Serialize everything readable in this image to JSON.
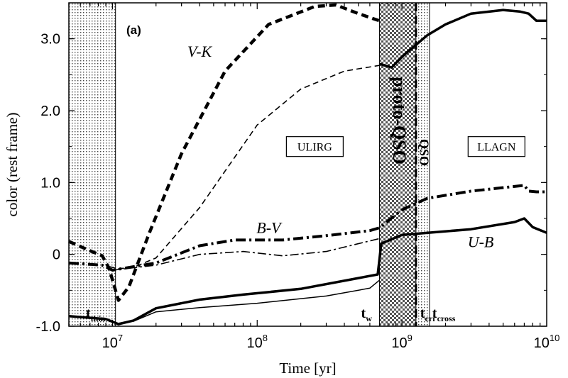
{
  "chart_data": {
    "type": "line",
    "panel_label": "(a)",
    "xlabel": "Time [yr]",
    "ylabel": "color (rest frame)",
    "x_scale": "log",
    "xlim": [
      5000000,
      10000000000
    ],
    "ylim": [
      -1.0,
      3.5
    ],
    "x_ticks": [
      {
        "value": 10000000,
        "base": "10",
        "exp": "7"
      },
      {
        "value": 100000000,
        "base": "10",
        "exp": "8"
      },
      {
        "value": 1000000000,
        "base": "10",
        "exp": "9"
      },
      {
        "value": 10000000000,
        "base": "10",
        "exp": "10"
      }
    ],
    "y_ticks": [
      {
        "value": 3.0,
        "label": "3.0"
      },
      {
        "value": 2.0,
        "label": "2.0"
      },
      {
        "value": 1.0,
        "label": "1.0"
      },
      {
        "value": 0.0,
        "label": "0"
      },
      {
        "value": -1.0,
        "label": "-1.0"
      }
    ],
    "series": [
      {
        "name": "V-K",
        "style": "thick-dashed",
        "x": [
          5000000,
          7000000,
          8500000,
          9500000,
          11000000,
          13000000,
          18000000,
          30000000,
          60000000,
          120000000,
          250000000,
          350000000,
          500000000,
          700000000
        ],
        "y": [
          0.18,
          0.05,
          -0.02,
          -0.2,
          -0.64,
          -0.45,
          0.3,
          1.4,
          2.55,
          3.2,
          3.45,
          3.47,
          3.35,
          3.25
        ]
      },
      {
        "name": "",
        "style": "thin-dashed",
        "x": [
          9500000,
          11000000,
          14000000,
          20000000,
          40000000,
          100000000,
          200000000,
          400000000,
          700000000
        ],
        "y": [
          -0.17,
          -0.2,
          -0.18,
          -0.05,
          0.65,
          1.8,
          2.3,
          2.55,
          2.63
        ]
      },
      {
        "name": "B-V",
        "style": "thick-dash-dot",
        "x": [
          5000000,
          8500000,
          10000000,
          20000000,
          40000000,
          70000000,
          150000000,
          300000000,
          600000000,
          700000000,
          1000000000,
          1500000000,
          3000000000,
          7000000000,
          7500000000,
          8500000000,
          10000000000
        ],
        "y": [
          -0.12,
          -0.15,
          -0.22,
          -0.12,
          0.12,
          0.2,
          0.2,
          0.26,
          0.33,
          0.37,
          0.62,
          0.78,
          0.88,
          0.96,
          0.88,
          0.87,
          0.87
        ]
      },
      {
        "name": "",
        "style": "thin-dash-dot",
        "x": [
          10000000,
          20000000,
          40000000,
          80000000,
          150000000,
          300000000,
          700000000
        ],
        "y": [
          -0.22,
          -0.15,
          0.0,
          0.04,
          -0.02,
          0.04,
          0.22
        ]
      },
      {
        "name": "U-B",
        "style": "thick-solid",
        "x": [
          5000000,
          9000000,
          11000000,
          14000000,
          20000000,
          40000000,
          80000000,
          200000000,
          500000000,
          680000000,
          720000000,
          1000000000,
          3000000000,
          6000000000,
          7000000000,
          8000000000,
          10000000000
        ],
        "y": [
          -0.86,
          -0.9,
          -0.97,
          -0.92,
          -0.75,
          -0.63,
          -0.56,
          -0.48,
          -0.33,
          -0.28,
          0.15,
          0.27,
          0.35,
          0.45,
          0.5,
          0.38,
          0.3
        ]
      },
      {
        "name": "",
        "style": "thin-solid",
        "x": [
          11000000,
          14000000,
          20000000,
          40000000,
          100000000,
          300000000,
          600000000,
          700000000
        ],
        "y": [
          -0.96,
          -0.93,
          -0.8,
          -0.74,
          -0.68,
          -0.58,
          -0.47,
          -0.36
        ]
      },
      {
        "name": "",
        "style": "thick-solid",
        "x": [
          700000000,
          850000000,
          1000000000,
          1500000000,
          2000000000,
          3000000000,
          5000000000,
          6500000000,
          7500000000,
          8500000000,
          10000000000
        ],
        "y": [
          2.65,
          2.6,
          2.75,
          3.05,
          3.2,
          3.35,
          3.4,
          3.38,
          3.35,
          3.25,
          3.25
        ]
      }
    ],
    "regions": [
      {
        "x0": 5000000,
        "x1": 10500000,
        "pattern": "dots",
        "label": "",
        "marker": "t",
        "marker_sub": "thin"
      },
      {
        "x0": 700000000,
        "x1": 1250000000,
        "pattern": "checker",
        "label": "proto-QSO",
        "marker": "t",
        "marker_sub": "w"
      },
      {
        "x0": 1250000000,
        "x1": 1550000000,
        "pattern": "dots",
        "label": "QSO",
        "marker": "t",
        "marker_sub": "cri"
      }
    ],
    "vlines": [
      {
        "x": 1250000000,
        "style": "dashed"
      }
    ],
    "annotations": [
      {
        "text": "ULIRG",
        "boxed": true,
        "x": 250000000,
        "y": 1.5
      },
      {
        "text": "LLAGN",
        "boxed": true,
        "x": 4500000000,
        "y": 1.5
      },
      {
        "text": "t",
        "sub": "cross",
        "x": 1550000000,
        "y": -0.8
      }
    ],
    "series_labels": [
      {
        "text": "V-K",
        "x": 40000000,
        "y": 2.75
      },
      {
        "text": "B-V",
        "x": 120000000,
        "y": 0.3
      },
      {
        "text": "U-B",
        "x": 3500000000,
        "y": 0.1
      }
    ]
  }
}
